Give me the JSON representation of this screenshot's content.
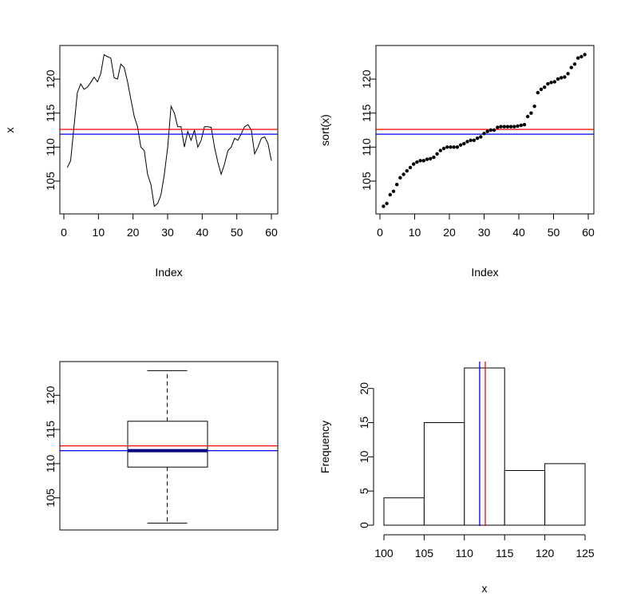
{
  "colors": {
    "mean_line": "#ff0000",
    "median_line": "#0000ff",
    "ink": "#000000",
    "median_bar": "#000080"
  },
  "chart_data": [
    {
      "id": "series",
      "type": "line",
      "title": "",
      "xlabel": "Index",
      "ylabel": "x",
      "xlim": [
        0,
        60
      ],
      "ylim": [
        101,
        124
      ],
      "xticks": [
        0,
        10,
        20,
        30,
        40,
        50,
        60
      ],
      "yticks": [
        105,
        110,
        115,
        120
      ],
      "grid": false,
      "y": [
        107.0,
        108.0,
        113.0,
        118.0,
        119.3,
        118.5,
        118.8,
        119.5,
        120.3,
        119.6,
        120.8,
        123.6,
        123.3,
        123.1,
        120.2,
        120.0,
        122.2,
        121.7,
        119.6,
        117.0,
        114.5,
        113.0,
        110.0,
        109.5,
        106.0,
        104.5,
        101.3,
        101.7,
        103.0,
        106.0,
        110.0,
        116.0,
        115.0,
        113.0,
        113.0,
        110.0,
        112.3,
        111.0,
        112.5,
        110.0,
        111.0,
        113.0,
        113.0,
        112.9,
        110.0,
        107.8,
        106.0,
        107.5,
        109.5,
        110.0,
        111.3,
        111.0,
        112.0,
        113.0,
        113.3,
        112.5,
        109.0,
        110.0,
        111.3,
        111.5,
        110.5,
        108.0
      ],
      "hlines": [
        {
          "name": "mean",
          "y": 112.6
        },
        {
          "name": "median",
          "y": 111.9
        }
      ]
    },
    {
      "id": "sorted",
      "type": "scatter",
      "title": "",
      "xlabel": "Index",
      "ylabel": "sort(x)",
      "xlim": [
        0,
        60
      ],
      "ylim": [
        101,
        124
      ],
      "xticks": [
        0,
        10,
        20,
        30,
        40,
        50,
        60
      ],
      "yticks": [
        105,
        110,
        115,
        120
      ],
      "grid": false,
      "y": [
        101.3,
        101.7,
        103.0,
        103.5,
        104.5,
        105.5,
        106.0,
        106.5,
        107.0,
        107.5,
        107.8,
        108.0,
        108.0,
        108.2,
        108.3,
        108.5,
        109.0,
        109.5,
        109.8,
        110.0,
        110.0,
        110.0,
        110.0,
        110.3,
        110.5,
        110.8,
        111.0,
        111.0,
        111.3,
        111.5,
        112.0,
        112.3,
        112.5,
        112.5,
        112.9,
        113.0,
        113.0,
        113.0,
        113.0,
        113.0,
        113.1,
        113.2,
        113.3,
        114.5,
        115.0,
        116.0,
        118.0,
        118.5,
        118.8,
        119.3,
        119.5,
        119.6,
        120.0,
        120.2,
        120.3,
        120.8,
        121.7,
        122.2,
        123.1,
        123.3,
        123.6
      ],
      "hlines": [
        {
          "name": "mean",
          "y": 112.6
        },
        {
          "name": "median",
          "y": 111.9
        }
      ]
    },
    {
      "id": "boxplot",
      "type": "box",
      "title": "",
      "xlabel": "",
      "ylabel": "",
      "ylim": [
        101,
        124
      ],
      "yticks": [
        105,
        110,
        115,
        120
      ],
      "grid": false,
      "min": 101.3,
      "q1": 109.5,
      "median": 111.9,
      "q3": 116.2,
      "max": 123.6,
      "hlines": [
        {
          "name": "mean",
          "y": 112.6
        },
        {
          "name": "median",
          "y": 111.9
        }
      ]
    },
    {
      "id": "histogram",
      "type": "bar",
      "title": "",
      "xlabel": "x",
      "ylabel": "Frequency",
      "xlim": [
        100,
        125
      ],
      "ylim": [
        0,
        23
      ],
      "xticks": [
        100,
        105,
        110,
        115,
        120,
        125
      ],
      "yticks": [
        0,
        5,
        10,
        15,
        20
      ],
      "grid": false,
      "bins": [
        {
          "from": 100,
          "to": 105,
          "count": 4
        },
        {
          "from": 105,
          "to": 110,
          "count": 15
        },
        {
          "from": 110,
          "to": 115,
          "count": 23
        },
        {
          "from": 115,
          "to": 120,
          "count": 8
        },
        {
          "from": 120,
          "to": 125,
          "count": 9
        }
      ],
      "vlines": [
        {
          "name": "mean",
          "x": 112.6
        },
        {
          "name": "median",
          "x": 111.9
        }
      ]
    }
  ]
}
